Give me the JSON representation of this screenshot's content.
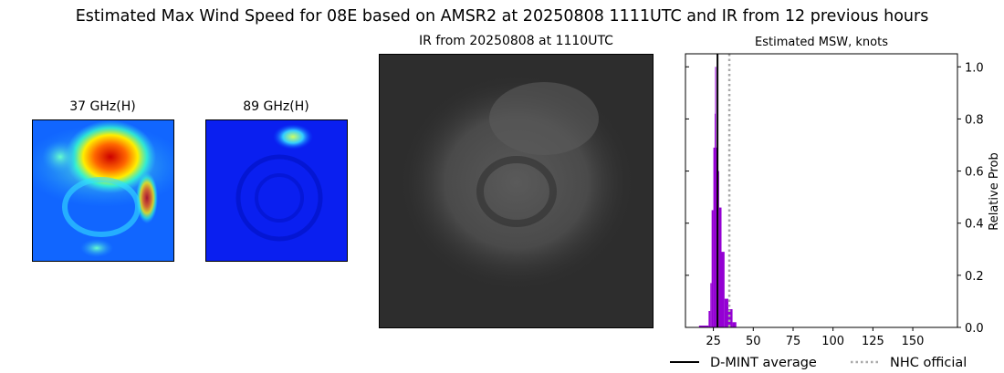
{
  "suptitle": "Estimated Max Wind Speed for 08E based on AMSR2 at 20250808 1111UTC and IR from 12 previous hours",
  "panels": {
    "p37": {
      "title": "37 GHz(H)"
    },
    "p89": {
      "title": "89 GHz(H)"
    },
    "ir": {
      "title": "IR from 20250808 at 1110UTC"
    }
  },
  "chart_data": {
    "type": "bar",
    "title": "Estimated MSW, knots",
    "xlabel": "",
    "ylabel": "Relative Prob",
    "xlim": [
      7.5,
      178
    ],
    "ylim": [
      0,
      1.05
    ],
    "xticks": [
      25,
      50,
      75,
      100,
      125,
      150
    ],
    "yticks": [
      "0.0",
      "0.2",
      "0.4",
      "0.6",
      "0.8",
      "1.0"
    ],
    "ytick_side": "right",
    "bar_color": "#9400d3",
    "bins": [
      {
        "x0": 16.0,
        "x1": 22.0,
        "value": 0.007
      },
      {
        "x0": 22.0,
        "x1": 23.1,
        "value": 0.063
      },
      {
        "x0": 23.1,
        "x1": 23.9,
        "value": 0.17
      },
      {
        "x0": 23.9,
        "x1": 25.0,
        "value": 0.45
      },
      {
        "x0": 25.0,
        "x1": 25.8,
        "value": 0.69
      },
      {
        "x0": 25.8,
        "x1": 26.1,
        "value": 0.82
      },
      {
        "x0": 26.1,
        "x1": 26.7,
        "value": 1.0
      },
      {
        "x0": 26.7,
        "x1": 27.8,
        "value": 0.69
      },
      {
        "x0": 27.8,
        "x1": 28.6,
        "value": 0.6
      },
      {
        "x0": 28.6,
        "x1": 30.1,
        "value": 0.46
      },
      {
        "x0": 30.1,
        "x1": 32.0,
        "value": 0.29
      },
      {
        "x0": 32.0,
        "x1": 34.4,
        "value": 0.11
      },
      {
        "x0": 34.4,
        "x1": 37.0,
        "value": 0.07
      },
      {
        "x0": 37.0,
        "x1": 39.4,
        "value": 0.02
      }
    ],
    "lines": [
      {
        "name": "D-MINT average",
        "x": 27.6,
        "color": "#000000",
        "style": "solid"
      },
      {
        "name": "NHC official",
        "x": 35,
        "color": "#aaaaaa",
        "style": "dotted"
      }
    ],
    "legend": "bottom"
  }
}
